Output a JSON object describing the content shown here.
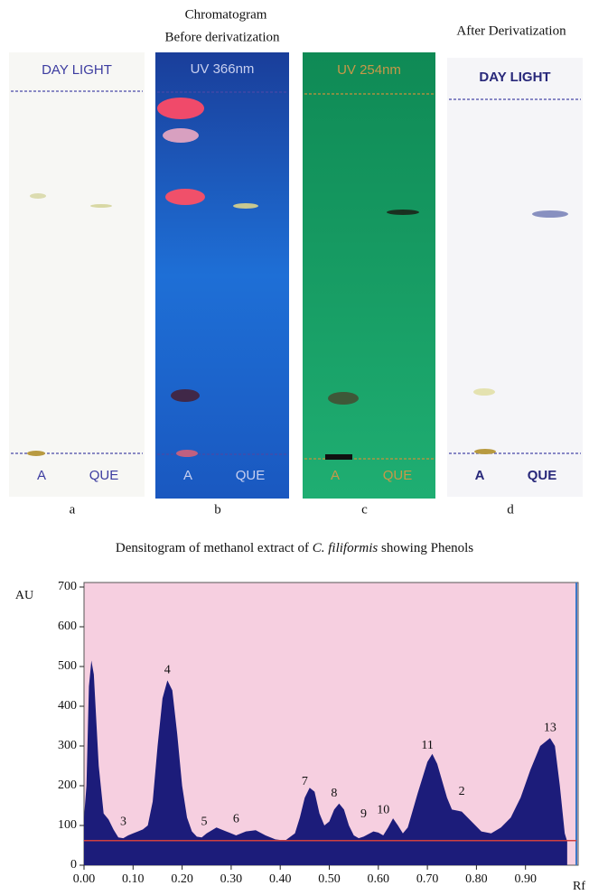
{
  "figure": {
    "header_left": [
      "Chromatogram",
      "Before derivatization"
    ],
    "header_right": "After Derivatization",
    "plates": [
      {
        "label": "DAY LIGHT",
        "lanes": [
          "A",
          "QUE"
        ],
        "letter": "a"
      },
      {
        "label": "UV 366nm",
        "lanes": [
          "A",
          "QUE"
        ],
        "letter": "b"
      },
      {
        "label": "UV 254nm",
        "lanes": [
          "A",
          "QUE"
        ],
        "letter": "c"
      },
      {
        "label": "DAY LIGHT",
        "lanes": [
          "A",
          "QUE"
        ],
        "letter": "d"
      }
    ]
  },
  "chart_data": {
    "type": "area",
    "title": [
      "Densitogram of methanol extract of",
      "C. filiformis",
      "showing Phenols"
    ],
    "y_label": "AU",
    "x_label": "Rf",
    "color": "#1c1c7a",
    "background": "#f6cfe0",
    "x": [
      0.0,
      0.005,
      0.01,
      0.015,
      0.02,
      0.03,
      0.04,
      0.05,
      0.06,
      0.07,
      0.08,
      0.09,
      0.1,
      0.11,
      0.12,
      0.13,
      0.14,
      0.15,
      0.16,
      0.17,
      0.18,
      0.19,
      0.2,
      0.21,
      0.22,
      0.23,
      0.24,
      0.25,
      0.27,
      0.29,
      0.31,
      0.33,
      0.35,
      0.37,
      0.39,
      0.41,
      0.43,
      0.44,
      0.45,
      0.46,
      0.47,
      0.48,
      0.49,
      0.5,
      0.51,
      0.52,
      0.53,
      0.54,
      0.55,
      0.56,
      0.57,
      0.59,
      0.6,
      0.61,
      0.62,
      0.63,
      0.64,
      0.65,
      0.66,
      0.68,
      0.7,
      0.71,
      0.72,
      0.74,
      0.75,
      0.77,
      0.79,
      0.81,
      0.83,
      0.85,
      0.87,
      0.89,
      0.91,
      0.93,
      0.95,
      0.96,
      0.97,
      0.98,
      0.985
    ],
    "values": [
      120,
      200,
      450,
      515,
      480,
      250,
      130,
      115,
      90,
      70,
      68,
      75,
      80,
      85,
      90,
      100,
      160,
      300,
      420,
      465,
      440,
      330,
      200,
      120,
      85,
      72,
      70,
      80,
      95,
      85,
      75,
      85,
      88,
      75,
      65,
      62,
      80,
      120,
      170,
      195,
      185,
      130,
      100,
      110,
      140,
      155,
      140,
      100,
      75,
      68,
      72,
      85,
      82,
      75,
      95,
      118,
      100,
      80,
      95,
      180,
      260,
      280,
      255,
      170,
      140,
      135,
      110,
      85,
      80,
      95,
      120,
      170,
      240,
      300,
      320,
      300,
      200,
      80,
      60
    ],
    "baseline": 62,
    "annotations": [
      {
        "text": "3",
        "x": 0.08,
        "y": 108
      },
      {
        "text": "4",
        "x": 0.17,
        "y": 490
      },
      {
        "text": "5",
        "x": 0.245,
        "y": 108
      },
      {
        "text": "6",
        "x": 0.31,
        "y": 115
      },
      {
        "text": "7",
        "x": 0.45,
        "y": 210
      },
      {
        "text": "8",
        "x": 0.51,
        "y": 180
      },
      {
        "text": "9",
        "x": 0.57,
        "y": 128
      },
      {
        "text": "10",
        "x": 0.61,
        "y": 138
      },
      {
        "text": "11",
        "x": 0.7,
        "y": 300
      },
      {
        "text": "2",
        "x": 0.77,
        "y": 185
      },
      {
        "text": "13",
        "x": 0.95,
        "y": 345
      }
    ],
    "xlim": [
      0,
      1.0
    ],
    "ylim": [
      0,
      700
    ],
    "xticks": [
      {
        "value": 0,
        "label": "0.00"
      },
      {
        "value": 0.1,
        "label": "0.10"
      },
      {
        "value": 0.2,
        "label": "0.20"
      },
      {
        "value": 0.3,
        "label": "0.30"
      },
      {
        "value": 0.4,
        "label": "0.40"
      },
      {
        "value": 0.5,
        "label": "0.50"
      },
      {
        "value": 0.6,
        "label": "0.60"
      },
      {
        "value": 0.7,
        "label": "0.70"
      },
      {
        "value": 0.8,
        "label": "0.80"
      },
      {
        "value": 0.9,
        "label": "0.90"
      }
    ],
    "yticks": [
      0,
      100,
      200,
      300,
      400,
      500,
      600,
      700
    ]
  }
}
